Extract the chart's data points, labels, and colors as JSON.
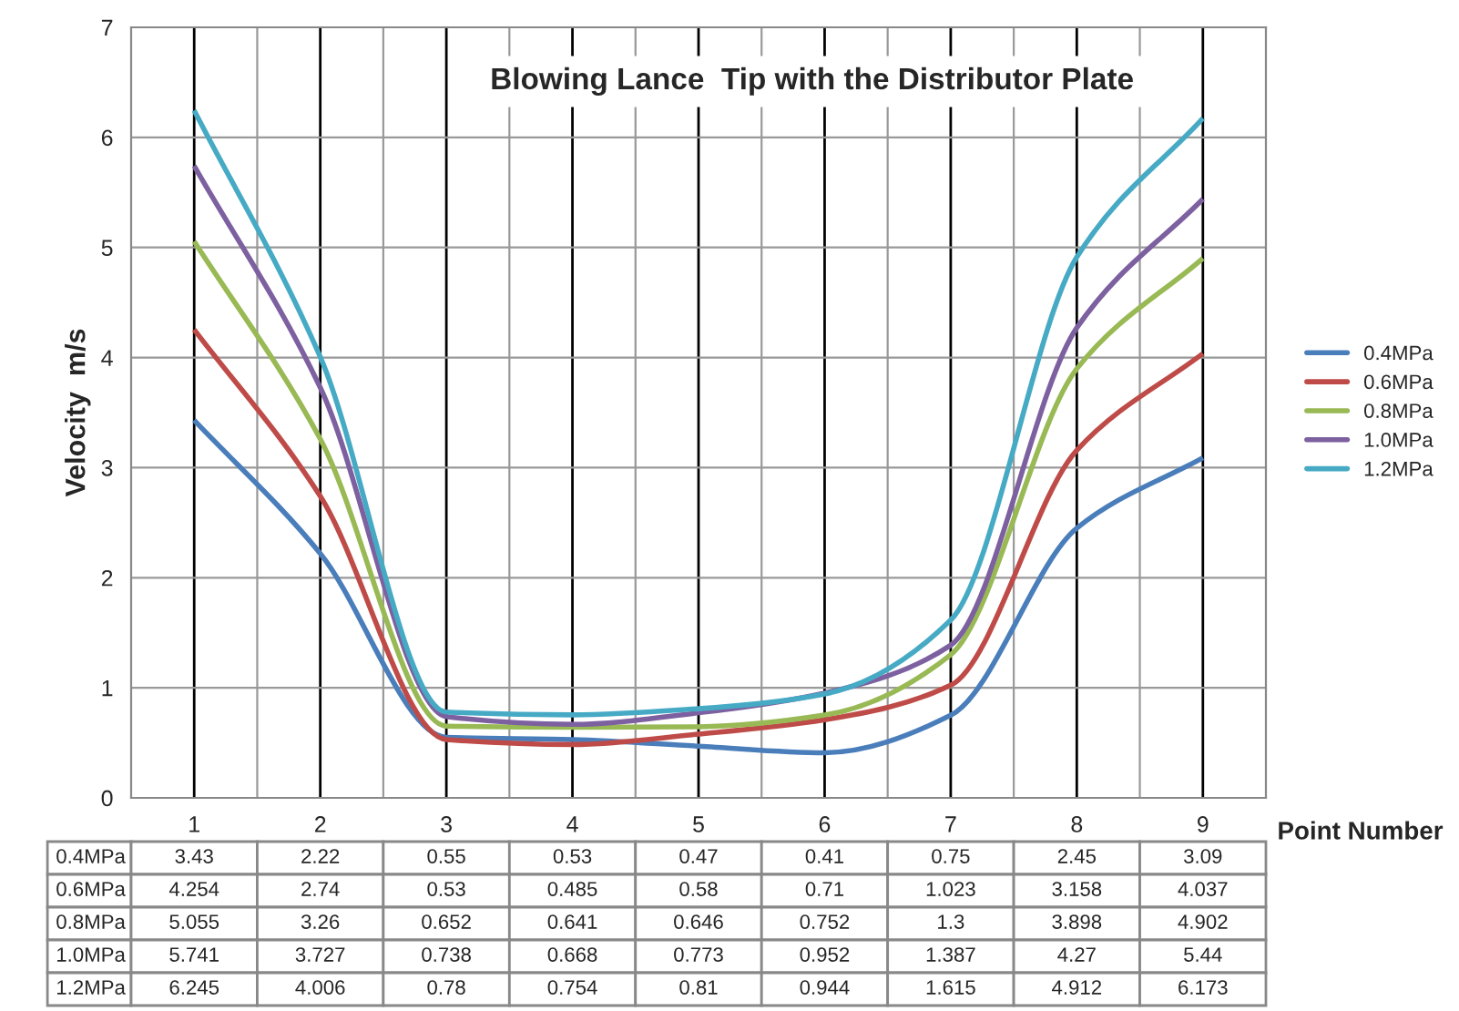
{
  "chart_data": {
    "type": "line",
    "title": "Blowing Lance  Tip with the Distributor Plate",
    "xlabel": "Point Number",
    "ylabel": "Velocity  m/s",
    "categories": [
      "1",
      "2",
      "3",
      "4",
      "5",
      "6",
      "7",
      "8",
      "9"
    ],
    "series": [
      {
        "name": "0.4MPa",
        "color": "#4a7ebb",
        "values": [
          3.43,
          2.22,
          0.55,
          0.53,
          0.47,
          0.41,
          0.75,
          2.45,
          3.09
        ]
      },
      {
        "name": "0.6MPa",
        "color": "#be4b48",
        "values": [
          4.254,
          2.74,
          0.53,
          0.485,
          0.58,
          0.71,
          1.023,
          3.158,
          4.037
        ]
      },
      {
        "name": "0.8MPa",
        "color": "#98b954",
        "values": [
          5.055,
          3.26,
          0.652,
          0.641,
          0.646,
          0.752,
          1.3,
          3.898,
          4.902
        ]
      },
      {
        "name": "1.0MPa",
        "color": "#7d60a0",
        "values": [
          5.741,
          3.727,
          0.738,
          0.668,
          0.773,
          0.952,
          1.387,
          4.27,
          5.44
        ]
      },
      {
        "name": "1.2MPa",
        "color": "#46aac5",
        "values": [
          6.245,
          4.006,
          0.78,
          0.754,
          0.81,
          0.944,
          1.615,
          4.912,
          6.173
        ]
      }
    ],
    "ylim": [
      0,
      7
    ],
    "yticks": [
      0,
      1,
      2,
      3,
      4,
      5,
      6,
      7
    ],
    "grid": true,
    "legend": "right",
    "data_labels": true,
    "line_style": "solid",
    "marker": "none"
  }
}
